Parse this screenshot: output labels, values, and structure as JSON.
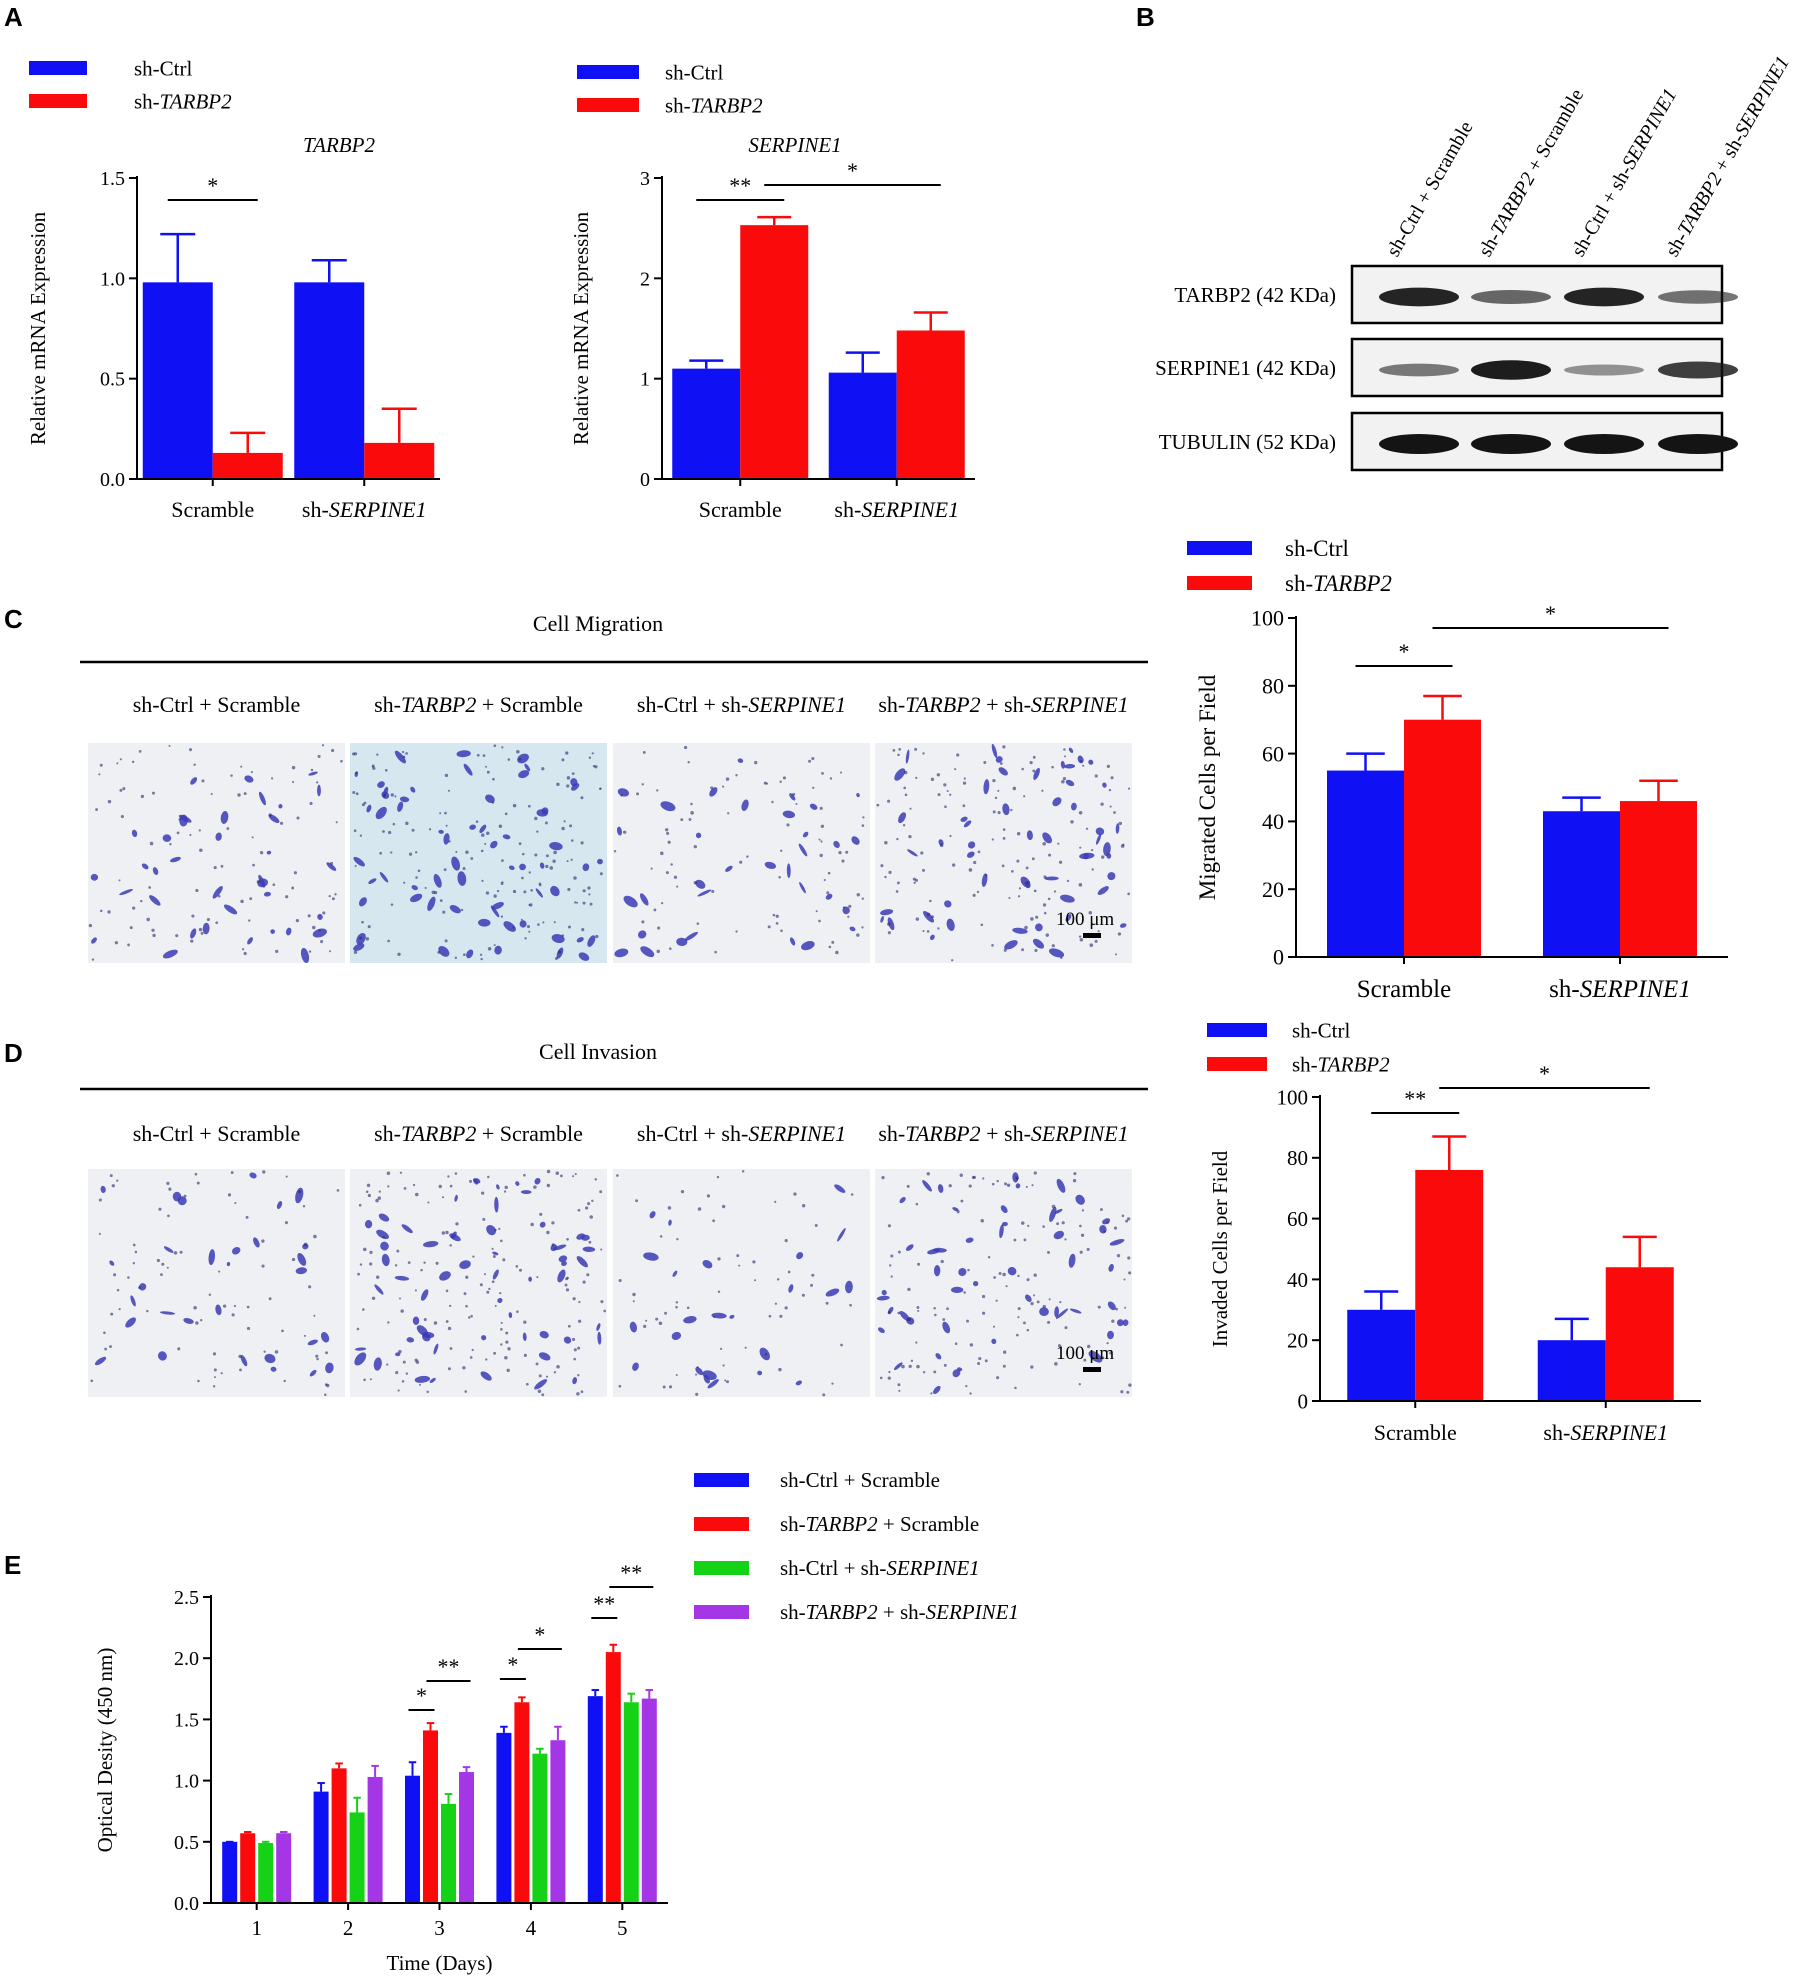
{
  "colors": {
    "blue": "#1010f5",
    "red": "#fa0a0a",
    "green": "#16d216",
    "purple": "#a536e6",
    "micro_bg": "#eef0f3",
    "micro_bg_alt": "#d7e7f0",
    "cell": "#3b3bb5",
    "blot_band": "#141414"
  },
  "legend_A": {
    "ctrl": "sh-Ctrl",
    "tarbp2_prefix": "sh-",
    "tarbp2_gene": "TARBP2"
  },
  "panels": {
    "A": "A",
    "B": "B",
    "C": "C",
    "D": "D",
    "E": "E"
  },
  "chart_data": [
    {
      "id": "A1",
      "type": "bar",
      "title": "TARBP2",
      "ylabel": "Relative mRNA Expression",
      "xlabel": "",
      "categories": [
        "Scramble",
        "sh-SERPINE1"
      ],
      "category_parts": [
        [
          "Scramble",
          ""
        ],
        [
          "sh-",
          "SERPINE1"
        ]
      ],
      "series": [
        {
          "name": "sh-Ctrl",
          "color": "#1010f5",
          "values": [
            0.98,
            0.98
          ],
          "errors": [
            0.24,
            0.11
          ]
        },
        {
          "name": "sh-TARBP2",
          "color": "#fa0a0a",
          "values": [
            0.13,
            0.18
          ],
          "errors": [
            0.1,
            0.17
          ]
        }
      ],
      "ylim": [
        0,
        1.5
      ],
      "yticks": [
        0,
        0.5,
        1.0,
        1.5
      ],
      "ytick_labels": [
        "0.0",
        "0.5",
        "1.0",
        "1.5"
      ],
      "significance": [
        {
          "label": "*",
          "from": [
            0,
            0
          ],
          "to": [
            0,
            1
          ]
        }
      ]
    },
    {
      "id": "A2",
      "type": "bar",
      "title": "SERPINE1",
      "ylabel": "Relative mRNA Expression",
      "xlabel": "",
      "categories": [
        "Scramble",
        "sh-SERPINE1"
      ],
      "category_parts": [
        [
          "Scramble",
          ""
        ],
        [
          "sh-",
          "SERPINE1"
        ]
      ],
      "series": [
        {
          "name": "sh-Ctrl",
          "color": "#1010f5",
          "values": [
            1.1,
            1.06
          ],
          "errors": [
            0.08,
            0.2
          ]
        },
        {
          "name": "sh-TARBP2",
          "color": "#fa0a0a",
          "values": [
            2.53,
            1.48
          ],
          "errors": [
            0.08,
            0.18
          ]
        }
      ],
      "ylim": [
        0,
        3
      ],
      "yticks": [
        0,
        1,
        2,
        3
      ],
      "ytick_labels": [
        "0",
        "1",
        "2",
        "3"
      ],
      "significance": [
        {
          "label": "**",
          "from": [
            0,
            0
          ],
          "to": [
            0,
            1
          ]
        },
        {
          "label": "*",
          "from": [
            0,
            1
          ],
          "to": [
            1,
            1
          ]
        }
      ]
    },
    {
      "id": "C",
      "type": "bar",
      "title": "",
      "ylabel": "Migrated Cells per Field",
      "xlabel": "",
      "categories": [
        "Scramble",
        "sh-SERPINE1"
      ],
      "category_parts": [
        [
          "Scramble",
          ""
        ],
        [
          "sh-",
          "SERPINE1"
        ]
      ],
      "series": [
        {
          "name": "sh-Ctrl",
          "color": "#1010f5",
          "values": [
            55,
            43
          ],
          "errors": [
            5,
            4
          ]
        },
        {
          "name": "sh-TARBP2",
          "color": "#fa0a0a",
          "values": [
            70,
            46
          ],
          "errors": [
            7,
            6
          ]
        }
      ],
      "ylim": [
        0,
        100
      ],
      "yticks": [
        0,
        20,
        40,
        60,
        80,
        100
      ],
      "ytick_labels": [
        "0",
        "20",
        "40",
        "60",
        "80",
        "100"
      ],
      "significance": [
        {
          "label": "*",
          "from": [
            0,
            0
          ],
          "to": [
            0,
            1
          ]
        },
        {
          "label": "*",
          "from": [
            0,
            1
          ],
          "to": [
            1,
            1
          ]
        }
      ]
    },
    {
      "id": "D",
      "type": "bar",
      "title": "",
      "ylabel": "Invaded Cells per Field",
      "xlabel": "",
      "categories": [
        "Scramble",
        "sh-SERPINE1"
      ],
      "category_parts": [
        [
          "Scramble",
          ""
        ],
        [
          "sh-",
          "SERPINE1"
        ]
      ],
      "series": [
        {
          "name": "sh-Ctrl",
          "color": "#1010f5",
          "values": [
            30,
            20
          ],
          "errors": [
            6,
            7
          ]
        },
        {
          "name": "sh-TARBP2",
          "color": "#fa0a0a",
          "values": [
            76,
            44
          ],
          "errors": [
            11,
            10
          ]
        }
      ],
      "ylim": [
        0,
        100
      ],
      "yticks": [
        0,
        20,
        40,
        60,
        80,
        100
      ],
      "ytick_labels": [
        "0",
        "20",
        "40",
        "60",
        "80",
        "100"
      ],
      "significance": [
        {
          "label": "**",
          "from": [
            0,
            0
          ],
          "to": [
            0,
            1
          ]
        },
        {
          "label": "*",
          "from": [
            0,
            1
          ],
          "to": [
            1,
            1
          ]
        }
      ]
    },
    {
      "id": "E",
      "type": "bar",
      "title": "",
      "ylabel": "Optical Desity (450 nm)",
      "xlabel": "Time (Days)",
      "categories": [
        "1",
        "2",
        "3",
        "4",
        "5"
      ],
      "series": [
        {
          "name": "sh-Ctrl + Scramble",
          "color": "#1010f5",
          "values": [
            0.5,
            0.91,
            1.04,
            1.39,
            1.69
          ],
          "errors": [
            0,
            0.07,
            0.11,
            0.05,
            0.05
          ]
        },
        {
          "name": "sh-TARBP2 + Scramble",
          "color": "#fa0a0a",
          "values": [
            0.57,
            1.1,
            1.41,
            1.64,
            2.05
          ],
          "errors": [
            0.01,
            0.04,
            0.06,
            0.04,
            0.06
          ]
        },
        {
          "name": "sh-Ctrl + sh-SERPINE1",
          "color": "#16d216",
          "values": [
            0.49,
            0.74,
            0.81,
            1.22,
            1.64
          ],
          "errors": [
            0.01,
            0.12,
            0.08,
            0.04,
            0.07
          ]
        },
        {
          "name": "sh-TARBP2 + sh-SERPINE1",
          "color": "#a536e6",
          "values": [
            0.57,
            1.03,
            1.07,
            1.33,
            1.67
          ],
          "errors": [
            0.01,
            0.09,
            0.04,
            0.11,
            0.07
          ]
        }
      ],
      "ylim": [
        0,
        2.5
      ],
      "yticks": [
        0,
        0.5,
        1.0,
        1.5,
        2.0,
        2.5
      ],
      "ytick_labels": [
        "0.0",
        "0.5",
        "1.0",
        "1.5",
        "2.0",
        "2.5"
      ],
      "significance": [
        {
          "label": "*",
          "from": [
            2,
            0
          ],
          "to": [
            2,
            1
          ]
        },
        {
          "label": "**",
          "from": [
            2,
            1
          ],
          "to": [
            2,
            3
          ]
        },
        {
          "label": "*",
          "from": [
            3,
            0
          ],
          "to": [
            3,
            1
          ]
        },
        {
          "label": "*",
          "from": [
            3,
            1
          ],
          "to": [
            3,
            3
          ]
        },
        {
          "label": "**",
          "from": [
            4,
            0
          ],
          "to": [
            4,
            1
          ]
        },
        {
          "label": "**",
          "from": [
            4,
            1
          ],
          "to": [
            4,
            3
          ]
        }
      ]
    }
  ],
  "legend_E": [
    {
      "parts": [
        "sh-Ctrl + Scramble"
      ],
      "italic": [
        false
      ]
    },
    {
      "parts": [
        "sh-",
        "TARBP2",
        " + Scramble"
      ],
      "italic": [
        false,
        true,
        false
      ]
    },
    {
      "parts": [
        "sh-Ctrl + sh-",
        "SERPINE1"
      ],
      "italic": [
        false,
        true
      ]
    },
    {
      "parts": [
        "sh-",
        "TARBP2",
        " + sh-",
        "SERPINE1"
      ],
      "italic": [
        false,
        true,
        false,
        true
      ]
    }
  ],
  "western_blot": {
    "lanes": [
      {
        "parts": [
          "sh-Ctrl + Scramble"
        ],
        "italic": [
          false
        ]
      },
      {
        "parts": [
          "sh-",
          "TARBP2",
          " + Scramble"
        ],
        "italic": [
          false,
          true,
          false
        ]
      },
      {
        "parts": [
          "sh-Ctrl + sh-",
          "SERPINE1"
        ],
        "italic": [
          false,
          true
        ]
      },
      {
        "parts": [
          "sh-",
          "TARBP2",
          " + sh-",
          "SERPINE1"
        ],
        "italic": [
          false,
          true,
          false,
          true
        ]
      }
    ],
    "rows": [
      {
        "label": "TARBP2 (42 KDa)",
        "intensity": [
          0.9,
          0.5,
          0.9,
          0.45
        ]
      },
      {
        "label": "SERPINE1 (42 KDa)",
        "intensity": [
          0.4,
          0.95,
          0.25,
          0.75
        ]
      },
      {
        "label": "TUBULIN (52 KDa)",
        "intensity": [
          1.0,
          1.0,
          1.0,
          1.0
        ]
      }
    ]
  },
  "micrographs": {
    "C": {
      "title": "Cell Migration",
      "scale": "100 μm",
      "density": [
        0.6,
        1.0,
        0.55,
        0.9
      ]
    },
    "D": {
      "title": "Cell Invasion",
      "scale": "100 μm",
      "density": [
        0.5,
        1.0,
        0.4,
        0.85
      ]
    },
    "labels": [
      {
        "parts": [
          "sh-Ctrl + Scramble"
        ],
        "italic": [
          false
        ]
      },
      {
        "parts": [
          "sh-",
          "TARBP2",
          " + Scramble"
        ],
        "italic": [
          false,
          true,
          false
        ]
      },
      {
        "parts": [
          "sh-Ctrl + sh-",
          "SERPINE1"
        ],
        "italic": [
          false,
          true
        ]
      },
      {
        "parts": [
          "sh-",
          "TARBP2",
          " + sh-",
          "SERPINE1"
        ],
        "italic": [
          false,
          true,
          false,
          true
        ]
      }
    ]
  }
}
